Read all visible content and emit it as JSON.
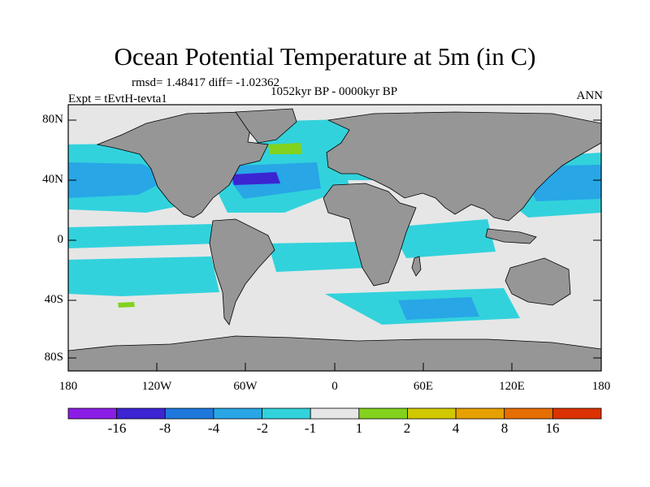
{
  "title": "Ocean Potential Temperature at 5m (in C)",
  "stats": "rmsd= 1.48417 diff= -1.02362",
  "period": "1052kyr BP - 0000kyr BP",
  "experiment": "Expt = tEvtH-tevta1",
  "season": "ANN",
  "map": {
    "lat_ticks": [
      "80N",
      "40N",
      "0",
      "40S",
      "80S"
    ],
    "lon_ticks": [
      "180",
      "120W",
      "60W",
      "0",
      "60E",
      "120E",
      "180"
    ],
    "land_color": "#969696",
    "ocean_color": "#e6e6e6"
  },
  "colorbar": {
    "labels": [
      "-16",
      "-8",
      "-4",
      "-2",
      "-1",
      "1",
      "2",
      "4",
      "8",
      "16"
    ],
    "colors": [
      "#8b1ee6",
      "#3c24d2",
      "#1e78dc",
      "#28a6e6",
      "#32d2dc",
      "#e6e6e6",
      "#82d21e",
      "#d2c800",
      "#e6a000",
      "#e66e00",
      "#dc3200"
    ]
  }
}
